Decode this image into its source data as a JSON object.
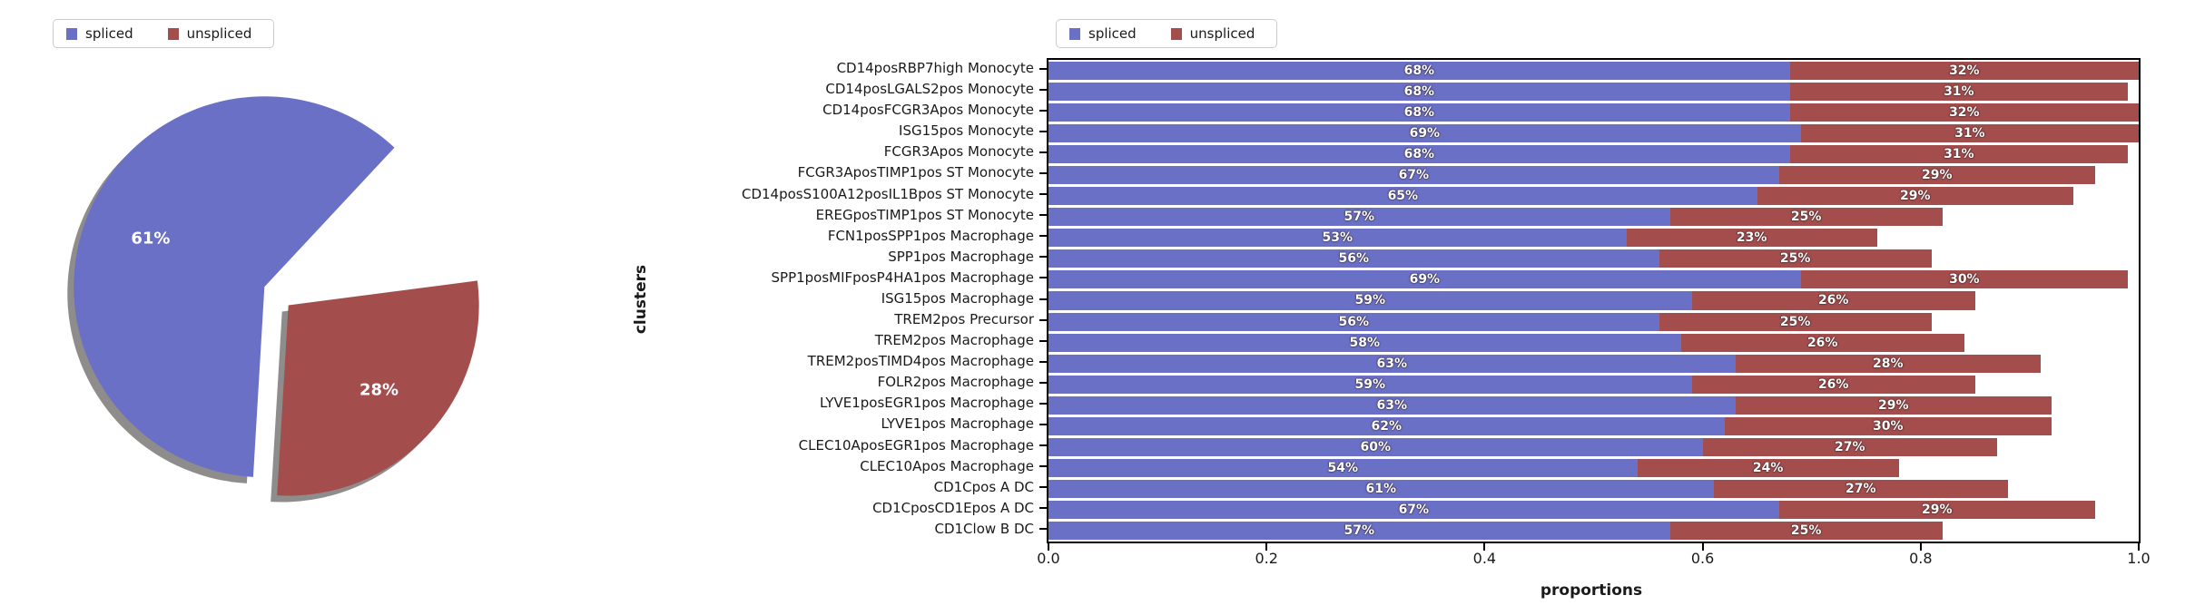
{
  "figure": {
    "background": "#ffffff"
  },
  "colors": {
    "spliced": "#6a70c5",
    "unspliced": "#a34d4d",
    "shadow": "#8f8c8c",
    "frame": "#000000",
    "text": "#1a1a1a"
  },
  "pie_legend": {
    "items": [
      {
        "label": "spliced",
        "color": "#6a70c5"
      },
      {
        "label": "unspliced",
        "color": "#a34d4d"
      }
    ]
  },
  "bar_legend": {
    "items": [
      {
        "label": "spliced",
        "color": "#6a70c5"
      },
      {
        "label": "unspliced",
        "color": "#a34d4d"
      }
    ]
  },
  "chart_data": [
    {
      "type": "pie",
      "title": "",
      "legend_entries": [
        "spliced",
        "unspliced"
      ],
      "slices": [
        {
          "label": "spliced",
          "value": 61,
          "display": "61%",
          "color": "#6a70c5"
        },
        {
          "label": "unspliced",
          "value": 28,
          "display": "28%",
          "color": "#a34d4d"
        }
      ],
      "values_sum_note": "values sum to 89; remaining 11% of the circle is an empty gap",
      "start_angle_deg": 47,
      "counterclockwise": true,
      "explode": [
        0.045,
        0.115
      ],
      "shadow": true,
      "legend_position": "upper left"
    },
    {
      "type": "bar",
      "subtype": "horizontal-stacked",
      "categories": [
        "CD14posRBP7high Monocyte",
        "CD14posLGALS2pos Monocyte",
        "CD14posFCGR3Apos Monocyte",
        "ISG15pos Monocyte",
        "FCGR3Apos Monocyte",
        "FCGR3AposTIMP1pos ST Monocyte",
        "CD14posS100A12posIL1Bpos ST Monocyte",
        "EREGposTIMP1pos ST Monocyte",
        "FCN1posSPP1pos Macrophage",
        "SPP1pos Macrophage",
        "SPP1posMIFposP4HA1pos Macrophage",
        "ISG15pos Macrophage",
        "TREM2pos Precursor",
        "TREM2pos Macrophage",
        "TREM2posTIMD4pos Macrophage",
        "FOLR2pos Macrophage",
        "LYVE1posEGR1pos Macrophage",
        "LYVE1pos Macrophage",
        "CLEC10AposEGR1pos Macrophage",
        "CLEC10Apos Macrophage",
        "CD1Cpos A DC",
        "CD1CposCD1Epos A DC",
        "CD1Clow B DC"
      ],
      "series": [
        {
          "name": "spliced",
          "color": "#6a70c5",
          "values": [
            68,
            68,
            68,
            69,
            68,
            67,
            65,
            57,
            53,
            56,
            69,
            59,
            56,
            58,
            63,
            59,
            63,
            62,
            60,
            54,
            61,
            67,
            57
          ]
        },
        {
          "name": "unspliced",
          "color": "#a34d4d",
          "values": [
            32,
            31,
            32,
            31,
            31,
            29,
            29,
            25,
            23,
            25,
            30,
            26,
            25,
            26,
            28,
            26,
            29,
            30,
            27,
            24,
            27,
            29,
            25
          ]
        }
      ],
      "value_format": "percent labels drawn inside each segment; bar length = value/100 on x axis",
      "xlabel": "proportions",
      "ylabel": "clusters",
      "xlim": [
        0.0,
        1.0
      ],
      "xticks": [
        "0.0",
        "0.2",
        "0.4",
        "0.6",
        "0.8",
        "1.0"
      ],
      "grid": false,
      "legend_position": "upper center above axes"
    }
  ]
}
